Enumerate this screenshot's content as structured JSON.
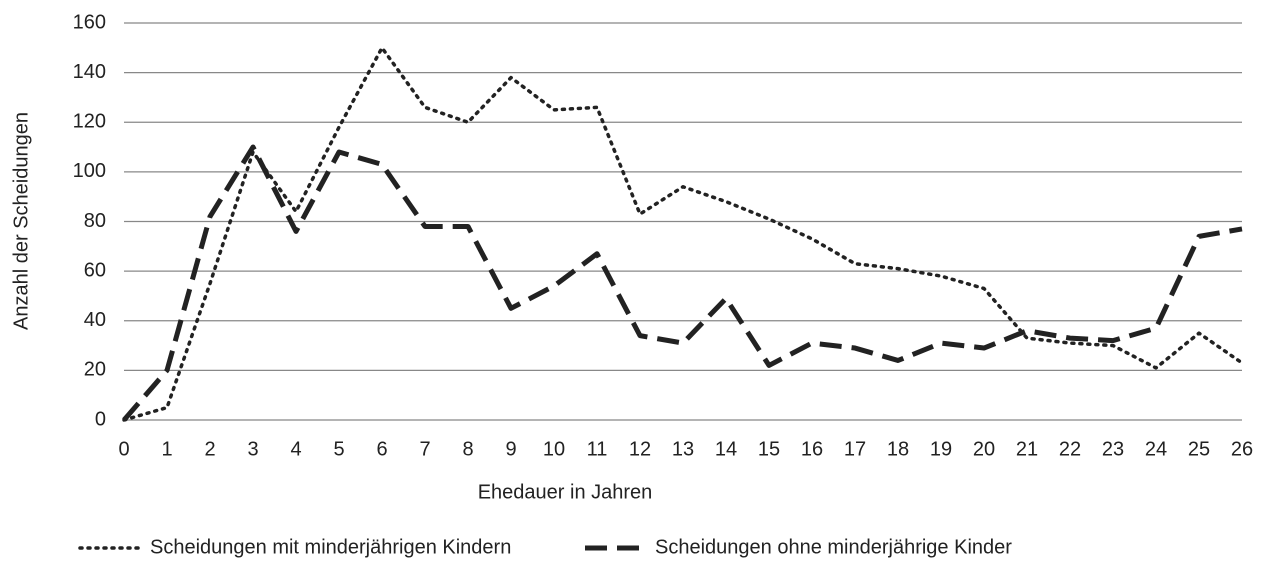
{
  "chart_data": {
    "type": "line",
    "x_label": "Ehedauer in Jahren",
    "y_label": "Anzahl der Scheidungen",
    "x": [
      0,
      1,
      2,
      3,
      4,
      5,
      6,
      7,
      8,
      9,
      10,
      11,
      12,
      13,
      14,
      15,
      16,
      17,
      18,
      19,
      20,
      21,
      22,
      23,
      24,
      25,
      26
    ],
    "xlim": [
      0,
      26
    ],
    "xticks": [
      0,
      1,
      2,
      3,
      4,
      5,
      6,
      7,
      8,
      9,
      10,
      11,
      12,
      13,
      14,
      15,
      16,
      17,
      18,
      19,
      20,
      21,
      22,
      23,
      24,
      25,
      26
    ],
    "ylim": [
      0,
      160
    ],
    "yticks": [
      0,
      20,
      40,
      60,
      80,
      100,
      120,
      140,
      160
    ],
    "grid": true,
    "legend": "bottom",
    "series": [
      {
        "name": "Scheidungen mit minderjährigen Kindern",
        "color": "#222222",
        "dash": "dotted",
        "values": [
          0,
          5,
          55,
          108,
          84,
          118,
          150,
          126,
          120,
          138,
          125,
          126,
          83,
          94,
          88,
          81,
          73,
          63,
          61,
          58,
          53,
          33,
          31,
          30,
          21,
          35,
          23
        ]
      },
      {
        "name": "Scheidungen ohne minderjährige Kinder",
        "color": "#222222",
        "dash": "dashed",
        "values": [
          0,
          20,
          82,
          110,
          76,
          108,
          103,
          78,
          78,
          45,
          54,
          67,
          34,
          31,
          49,
          22,
          31,
          29,
          24,
          31,
          29,
          36,
          33,
          32,
          37,
          74,
          77
        ]
      }
    ]
  }
}
